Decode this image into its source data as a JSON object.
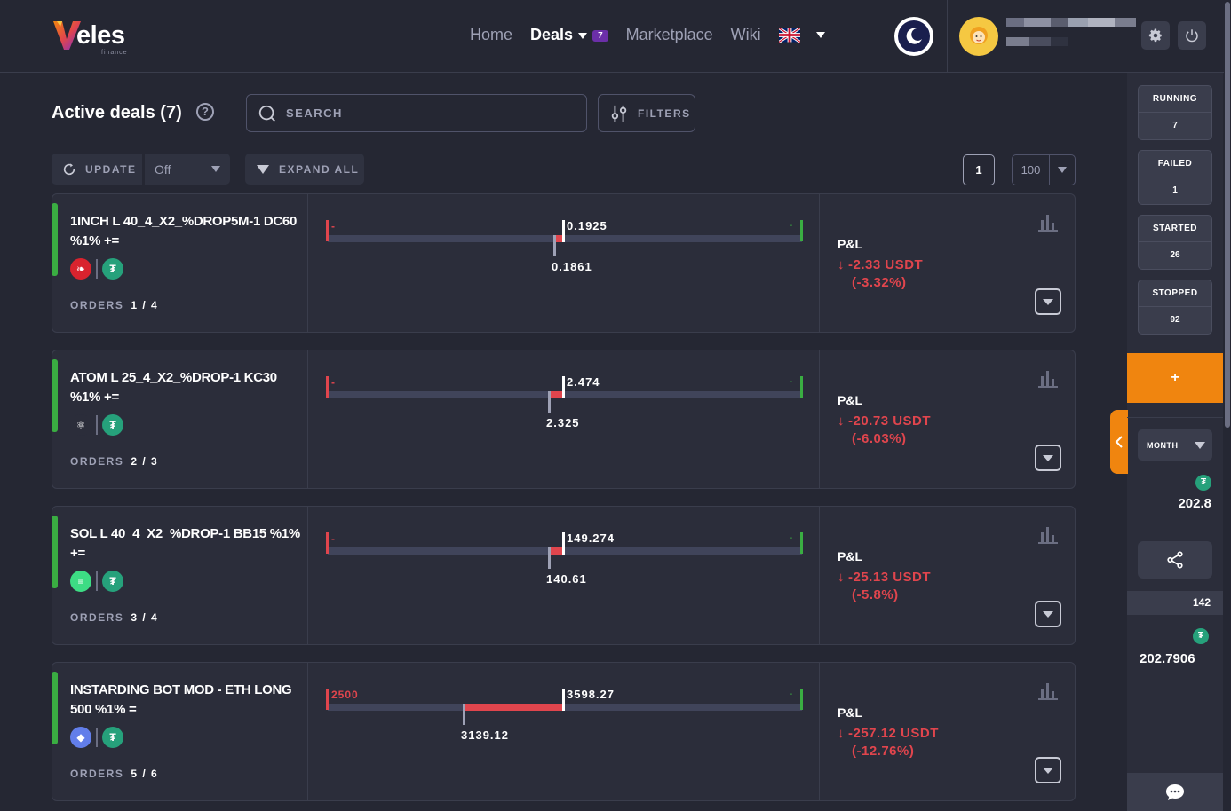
{
  "header": {
    "logo_text": "eles",
    "logo_sub": "finance",
    "nav": {
      "home": "Home",
      "deals": "Deals",
      "deals_badge": "7",
      "marketplace": "Marketplace",
      "wiki": "Wiki"
    }
  },
  "toolbar": {
    "title": "Active deals (7)",
    "help": "?",
    "search_placeholder": "SEARCH",
    "filters": "FILTERS",
    "update": "UPDATE",
    "update_value": "Off",
    "expand_all": "EXPAND ALL",
    "page": "1",
    "page_size": "100"
  },
  "deals": [
    {
      "name": "1INCH L 40_4_X2_%DROP5M-1 DC60 %1% +=",
      "orders_label": "ORDERS",
      "orders": "1 / 4",
      "left_label": "-",
      "right_label": "-",
      "current_price": "0.1925",
      "entry_price": "0.1861",
      "pnl_title": "P&L",
      "pnl_value": "-2.33 USDT",
      "pnl_percent": "(-3.32%)",
      "coin_icon": "1inch-icon",
      "quote_icon": "usdt-icon"
    },
    {
      "name": "ATOM L 25_4_X2_%DROP-1 KC30 %1% +=",
      "orders_label": "ORDERS",
      "orders": "2 / 3",
      "left_label": "-",
      "right_label": "-",
      "current_price": "2.474",
      "entry_price": "2.325",
      "pnl_title": "P&L",
      "pnl_value": "-20.73 USDT",
      "pnl_percent": "(-6.03%)",
      "coin_icon": "atom-icon",
      "quote_icon": "usdt-icon"
    },
    {
      "name": "SOL L 40_4_X2_%DROP-1 BB15 %1% +=",
      "orders_label": "ORDERS",
      "orders": "3 / 4",
      "left_label": "-",
      "right_label": "-",
      "current_price": "149.274",
      "entry_price": "140.61",
      "pnl_title": "P&L",
      "pnl_value": "-25.13 USDT",
      "pnl_percent": "(-5.8%)",
      "coin_icon": "sol-icon",
      "quote_icon": "usdt-icon"
    },
    {
      "name": "INSTARDING BOT MOD - ETH LONG 500 %1% =",
      "orders_label": "ORDERS",
      "orders": "5 / 6",
      "left_label": "2500",
      "right_label": "-",
      "current_price": "3598.27",
      "entry_price": "3139.12",
      "pnl_title": "P&L",
      "pnl_value": "-257.12 USDT",
      "pnl_percent": "(-12.76%)",
      "coin_icon": "eth-icon",
      "quote_icon": "usdt-icon"
    }
  ],
  "sidebar": {
    "stats": [
      {
        "label": "RUNNING",
        "value": "7"
      },
      {
        "label": "FAILED",
        "value": "1"
      },
      {
        "label": "STARTED",
        "value": "26"
      },
      {
        "label": "STOPPED",
        "value": "92"
      }
    ],
    "add": "+",
    "period": "MONTH",
    "profit": "202.8",
    "count": "142",
    "total": "202.7906"
  },
  "colors": {
    "accent_orange": "#f0850f",
    "loss_red": "#e0454d",
    "profit_green": "#3aad42",
    "usdt_green": "#26a17b",
    "badge_purple": "#6b2fa8"
  }
}
